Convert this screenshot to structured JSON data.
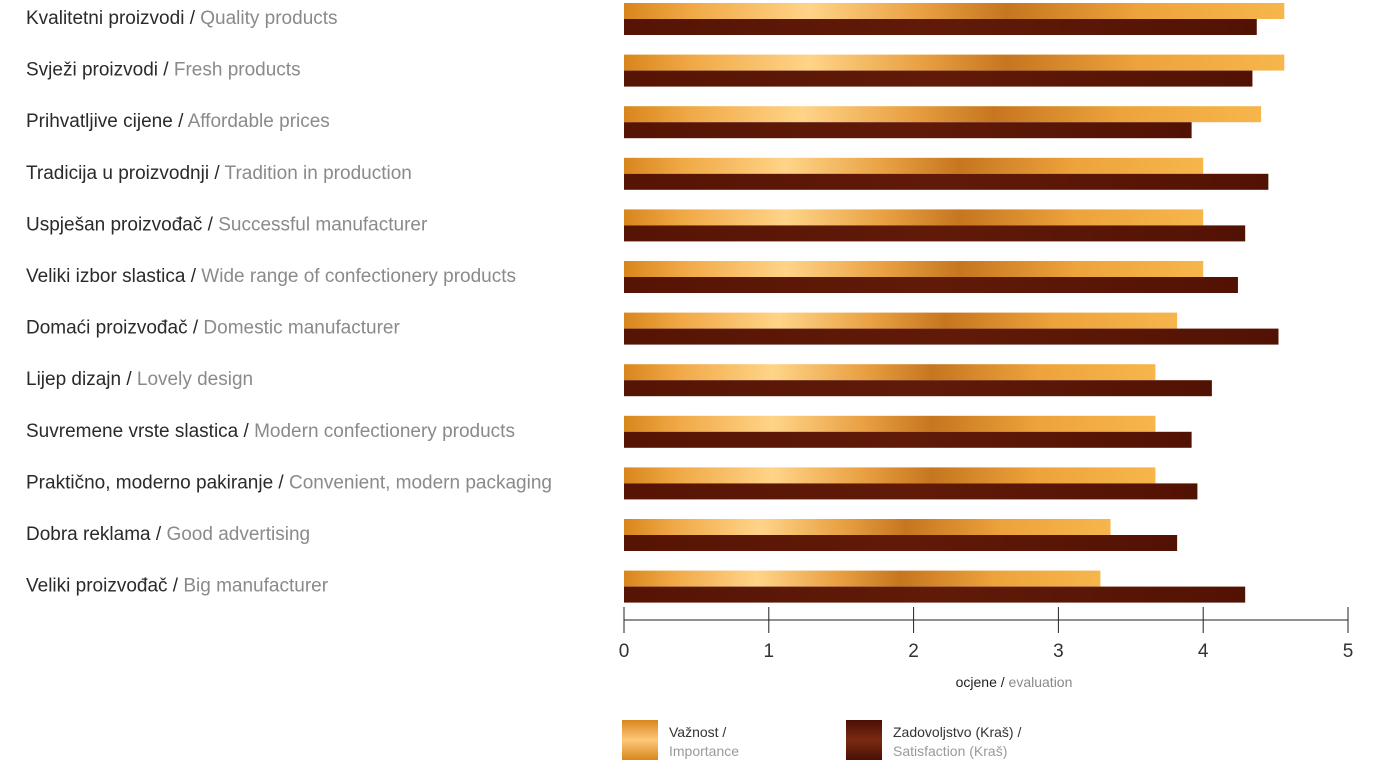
{
  "chart_data": {
    "type": "bar",
    "orientation": "horizontal",
    "categories": [
      {
        "local": "Kvalitetni proizvodi",
        "en": "Quality products"
      },
      {
        "local": "Svježi proizvodi",
        "en": "Fresh products"
      },
      {
        "local": "Prihvatljive cijene",
        "en": "Affordable prices"
      },
      {
        "local": "Tradicija u proizvodnji",
        "en": "Tradition in production"
      },
      {
        "local": "Uspješan proizvođač",
        "en": "Successful manufacturer"
      },
      {
        "local": "Veliki izbor slastica",
        "en": "Wide range of confectionery products"
      },
      {
        "local": "Domaći proizvođač",
        "en": "Domestic manufacturer"
      },
      {
        "local": "Lijep dizajn",
        "en": "Lovely design"
      },
      {
        "local": "Suvremene vrste slastica",
        "en": "Modern confectionery products"
      },
      {
        "local": "Praktično, moderno pakiranje",
        "en": "Convenient, modern packaging"
      },
      {
        "local": "Dobra reklama",
        "en": "Good advertising"
      },
      {
        "local": "Veliki proizvođač",
        "en": "Big manufacturer"
      }
    ],
    "label_separator": " / ",
    "series": [
      {
        "name_local": "Važnost /",
        "name_en": "Importance",
        "color": "#e8a030",
        "values": [
          4.56,
          4.56,
          4.4,
          4.0,
          4.0,
          4.0,
          3.82,
          3.67,
          3.67,
          3.67,
          3.36,
          3.29
        ]
      },
      {
        "name_local": "Zadovoljstvo (Kraš) /",
        "name_en": "Satisfaction (Kraš)",
        "color": "#5a1405",
        "values": [
          4.37,
          4.34,
          3.92,
          4.45,
          4.29,
          4.24,
          4.52,
          4.06,
          3.92,
          3.96,
          3.82,
          4.29
        ]
      }
    ],
    "xlim": [
      0,
      5
    ],
    "xticks": [
      "0",
      "1",
      "2",
      "3",
      "4",
      "5"
    ],
    "xlabel_local": "ocjene",
    "xlabel_en": "evaluation",
    "legend": "bottom",
    "grid": false
  }
}
